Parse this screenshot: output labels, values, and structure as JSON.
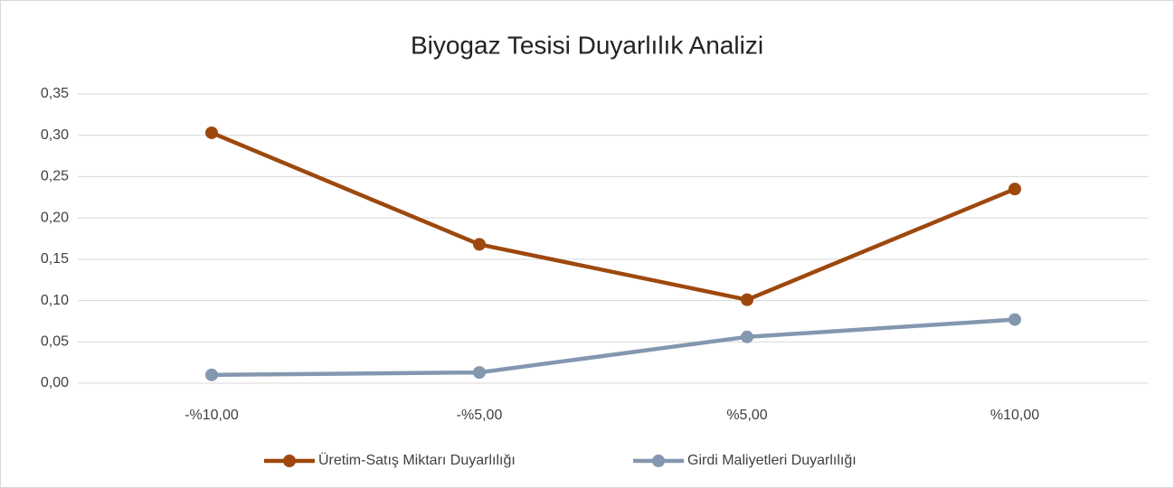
{
  "chart_data": {
    "type": "line",
    "title": "Biyogaz Tesisi Duyarlılık Analizi",
    "categories": [
      "-%10,00",
      "-%5,00",
      "%5,00",
      "%10,00"
    ],
    "series": [
      {
        "name": "Üretim-Satış Miktarı Duyarlılığı",
        "color": "#9e480e",
        "values": [
          0.303,
          0.168,
          0.101,
          0.235
        ]
      },
      {
        "name": "Girdi Maliyetleri Duyarlılığı",
        "color": "#8497b0",
        "values": [
          0.01,
          0.013,
          0.056,
          0.077
        ]
      }
    ],
    "ylim": [
      0,
      0.35
    ],
    "yticks": [
      {
        "value": 0,
        "label": "0,00"
      },
      {
        "value": 0.05,
        "label": "0,05"
      },
      {
        "value": 0.1,
        "label": "0,10"
      },
      {
        "value": 0.15,
        "label": "0,15"
      },
      {
        "value": 0.2,
        "label": "0,20"
      },
      {
        "value": 0.25,
        "label": "0,25"
      },
      {
        "value": 0.3,
        "label": "0,30"
      },
      {
        "value": 0.35,
        "label": "0,35"
      }
    ],
    "grid": true,
    "legend": "bottom"
  }
}
